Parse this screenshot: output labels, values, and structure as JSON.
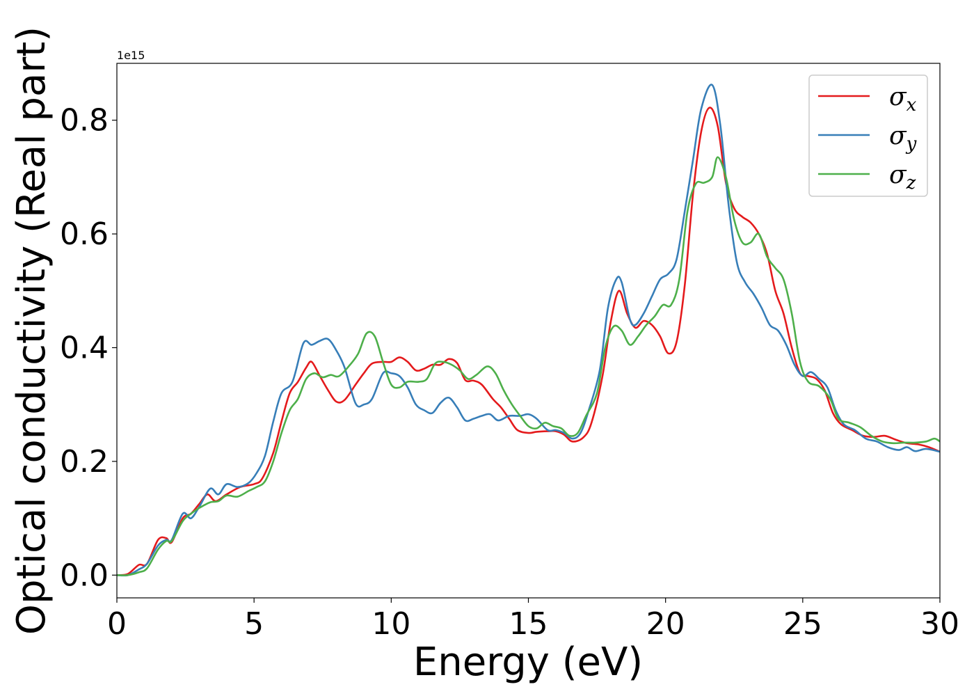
{
  "chart_data": {
    "type": "line",
    "title": "",
    "xlabel": "Energy (eV)",
    "ylabel": "Optical conductivity (Real part)",
    "y_offset_label": "1e15",
    "xlim": [
      0,
      30
    ],
    "ylim": [
      -0.04,
      0.9
    ],
    "xticks": [
      0,
      5,
      10,
      15,
      20,
      25,
      30
    ],
    "xtick_labels": [
      "0",
      "5",
      "10",
      "15",
      "20",
      "25",
      "30"
    ],
    "yticks": [
      0.0,
      0.2,
      0.4,
      0.6,
      0.8
    ],
    "ytick_labels": [
      "0.0",
      "0.2",
      "0.4",
      "0.6",
      "0.8"
    ],
    "grid": false,
    "legend_position": "top-right",
    "series": [
      {
        "name": "σ",
        "subscript": "x",
        "color": "#e41a1c",
        "points": [
          [
            0,
            0
          ],
          [
            0.4,
            0.002
          ],
          [
            0.8,
            0.018
          ],
          [
            1.1,
            0.02
          ],
          [
            1.5,
            0.062
          ],
          [
            1.8,
            0.065
          ],
          [
            2.0,
            0.058
          ],
          [
            2.4,
            0.1
          ],
          [
            2.7,
            0.108
          ],
          [
            3.0,
            0.125
          ],
          [
            3.3,
            0.142
          ],
          [
            3.6,
            0.13
          ],
          [
            4.0,
            0.142
          ],
          [
            4.5,
            0.155
          ],
          [
            5.0,
            0.16
          ],
          [
            5.3,
            0.17
          ],
          [
            5.7,
            0.215
          ],
          [
            6.0,
            0.27
          ],
          [
            6.3,
            0.32
          ],
          [
            6.6,
            0.34
          ],
          [
            6.9,
            0.365
          ],
          [
            7.1,
            0.375
          ],
          [
            7.4,
            0.35
          ],
          [
            7.7,
            0.325
          ],
          [
            8.0,
            0.305
          ],
          [
            8.3,
            0.308
          ],
          [
            8.7,
            0.335
          ],
          [
            9.0,
            0.355
          ],
          [
            9.3,
            0.372
          ],
          [
            9.7,
            0.375
          ],
          [
            10.0,
            0.375
          ],
          [
            10.3,
            0.383
          ],
          [
            10.6,
            0.375
          ],
          [
            10.9,
            0.36
          ],
          [
            11.2,
            0.363
          ],
          [
            11.5,
            0.37
          ],
          [
            11.8,
            0.37
          ],
          [
            12.1,
            0.38
          ],
          [
            12.4,
            0.373
          ],
          [
            12.7,
            0.343
          ],
          [
            13.0,
            0.342
          ],
          [
            13.3,
            0.335
          ],
          [
            13.7,
            0.31
          ],
          [
            14.0,
            0.295
          ],
          [
            14.3,
            0.275
          ],
          [
            14.6,
            0.255
          ],
          [
            15.0,
            0.25
          ],
          [
            15.3,
            0.252
          ],
          [
            15.7,
            0.253
          ],
          [
            16.0,
            0.253
          ],
          [
            16.3,
            0.247
          ],
          [
            16.6,
            0.235
          ],
          [
            17.0,
            0.242
          ],
          [
            17.3,
            0.268
          ],
          [
            17.7,
            0.35
          ],
          [
            18.0,
            0.445
          ],
          [
            18.3,
            0.5
          ],
          [
            18.6,
            0.46
          ],
          [
            18.9,
            0.435
          ],
          [
            19.2,
            0.447
          ],
          [
            19.5,
            0.44
          ],
          [
            19.8,
            0.42
          ],
          [
            20.1,
            0.39
          ],
          [
            20.4,
            0.41
          ],
          [
            20.7,
            0.51
          ],
          [
            21.0,
            0.67
          ],
          [
            21.3,
            0.78
          ],
          [
            21.6,
            0.822
          ],
          [
            21.9,
            0.79
          ],
          [
            22.2,
            0.69
          ],
          [
            22.5,
            0.645
          ],
          [
            22.8,
            0.63
          ],
          [
            23.1,
            0.62
          ],
          [
            23.4,
            0.6
          ],
          [
            23.7,
            0.565
          ],
          [
            24.0,
            0.5
          ],
          [
            24.3,
            0.46
          ],
          [
            24.6,
            0.4
          ],
          [
            24.9,
            0.355
          ],
          [
            25.2,
            0.35
          ],
          [
            25.5,
            0.345
          ],
          [
            25.8,
            0.325
          ],
          [
            26.1,
            0.285
          ],
          [
            26.4,
            0.265
          ],
          [
            26.8,
            0.255
          ],
          [
            27.2,
            0.245
          ],
          [
            27.6,
            0.243
          ],
          [
            28.0,
            0.245
          ],
          [
            28.4,
            0.238
          ],
          [
            28.8,
            0.232
          ],
          [
            29.2,
            0.23
          ],
          [
            29.6,
            0.225
          ],
          [
            30.0,
            0.217
          ]
        ]
      },
      {
        "name": "σ",
        "subscript": "y",
        "color": "#377eb8",
        "points": [
          [
            0,
            0
          ],
          [
            0.4,
            0
          ],
          [
            0.8,
            0.01
          ],
          [
            1.1,
            0.02
          ],
          [
            1.5,
            0.052
          ],
          [
            1.8,
            0.062
          ],
          [
            2.0,
            0.062
          ],
          [
            2.4,
            0.108
          ],
          [
            2.7,
            0.1
          ],
          [
            3.0,
            0.12
          ],
          [
            3.4,
            0.152
          ],
          [
            3.7,
            0.142
          ],
          [
            4.0,
            0.16
          ],
          [
            4.4,
            0.155
          ],
          [
            4.8,
            0.162
          ],
          [
            5.1,
            0.18
          ],
          [
            5.4,
            0.21
          ],
          [
            5.7,
            0.27
          ],
          [
            6.0,
            0.32
          ],
          [
            6.4,
            0.34
          ],
          [
            6.8,
            0.408
          ],
          [
            7.1,
            0.405
          ],
          [
            7.4,
            0.412
          ],
          [
            7.7,
            0.415
          ],
          [
            8.0,
            0.395
          ],
          [
            8.3,
            0.365
          ],
          [
            8.7,
            0.302
          ],
          [
            9.0,
            0.3
          ],
          [
            9.3,
            0.31
          ],
          [
            9.7,
            0.355
          ],
          [
            10.0,
            0.355
          ],
          [
            10.3,
            0.35
          ],
          [
            10.6,
            0.33
          ],
          [
            10.9,
            0.3
          ],
          [
            11.2,
            0.29
          ],
          [
            11.5,
            0.285
          ],
          [
            11.8,
            0.303
          ],
          [
            12.1,
            0.312
          ],
          [
            12.4,
            0.295
          ],
          [
            12.7,
            0.272
          ],
          [
            13.0,
            0.275
          ],
          [
            13.3,
            0.28
          ],
          [
            13.6,
            0.283
          ],
          [
            13.9,
            0.272
          ],
          [
            14.3,
            0.28
          ],
          [
            14.7,
            0.28
          ],
          [
            15.0,
            0.283
          ],
          [
            15.3,
            0.275
          ],
          [
            15.7,
            0.255
          ],
          [
            16.0,
            0.255
          ],
          [
            16.3,
            0.25
          ],
          [
            16.6,
            0.24
          ],
          [
            16.9,
            0.25
          ],
          [
            17.2,
            0.29
          ],
          [
            17.6,
            0.36
          ],
          [
            17.9,
            0.47
          ],
          [
            18.2,
            0.52
          ],
          [
            18.4,
            0.515
          ],
          [
            18.7,
            0.45
          ],
          [
            18.9,
            0.44
          ],
          [
            19.2,
            0.46
          ],
          [
            19.5,
            0.49
          ],
          [
            19.8,
            0.52
          ],
          [
            20.1,
            0.53
          ],
          [
            20.4,
            0.555
          ],
          [
            20.7,
            0.64
          ],
          [
            21.0,
            0.73
          ],
          [
            21.3,
            0.82
          ],
          [
            21.7,
            0.862
          ],
          [
            22.0,
            0.79
          ],
          [
            22.3,
            0.65
          ],
          [
            22.6,
            0.55
          ],
          [
            22.9,
            0.515
          ],
          [
            23.2,
            0.495
          ],
          [
            23.5,
            0.47
          ],
          [
            23.8,
            0.44
          ],
          [
            24.1,
            0.43
          ],
          [
            24.4,
            0.405
          ],
          [
            24.7,
            0.37
          ],
          [
            25.0,
            0.35
          ],
          [
            25.3,
            0.357
          ],
          [
            25.6,
            0.345
          ],
          [
            25.9,
            0.33
          ],
          [
            26.2,
            0.29
          ],
          [
            26.5,
            0.265
          ],
          [
            26.9,
            0.255
          ],
          [
            27.3,
            0.24
          ],
          [
            27.7,
            0.235
          ],
          [
            28.1,
            0.225
          ],
          [
            28.5,
            0.22
          ],
          [
            28.8,
            0.225
          ],
          [
            29.1,
            0.218
          ],
          [
            29.5,
            0.222
          ],
          [
            30.0,
            0.217
          ]
        ]
      },
      {
        "name": "σ",
        "subscript": "z",
        "color": "#4daf4a",
        "points": [
          [
            0,
            0
          ],
          [
            0.4,
            0
          ],
          [
            0.8,
            0.005
          ],
          [
            1.1,
            0.012
          ],
          [
            1.5,
            0.045
          ],
          [
            1.8,
            0.06
          ],
          [
            2.0,
            0.06
          ],
          [
            2.4,
            0.095
          ],
          [
            2.7,
            0.108
          ],
          [
            3.0,
            0.118
          ],
          [
            3.4,
            0.128
          ],
          [
            3.7,
            0.13
          ],
          [
            4.0,
            0.14
          ],
          [
            4.4,
            0.138
          ],
          [
            4.8,
            0.148
          ],
          [
            5.1,
            0.155
          ],
          [
            5.4,
            0.165
          ],
          [
            5.7,
            0.2
          ],
          [
            6.0,
            0.25
          ],
          [
            6.3,
            0.29
          ],
          [
            6.6,
            0.31
          ],
          [
            6.9,
            0.345
          ],
          [
            7.2,
            0.355
          ],
          [
            7.5,
            0.348
          ],
          [
            7.8,
            0.352
          ],
          [
            8.1,
            0.35
          ],
          [
            8.5,
            0.37
          ],
          [
            8.8,
            0.39
          ],
          [
            9.1,
            0.425
          ],
          [
            9.4,
            0.42
          ],
          [
            9.7,
            0.375
          ],
          [
            10.0,
            0.335
          ],
          [
            10.3,
            0.33
          ],
          [
            10.6,
            0.34
          ],
          [
            11.0,
            0.34
          ],
          [
            11.3,
            0.345
          ],
          [
            11.6,
            0.372
          ],
          [
            11.9,
            0.375
          ],
          [
            12.2,
            0.37
          ],
          [
            12.5,
            0.36
          ],
          [
            12.8,
            0.345
          ],
          [
            13.1,
            0.352
          ],
          [
            13.5,
            0.367
          ],
          [
            13.8,
            0.355
          ],
          [
            14.1,
            0.325
          ],
          [
            14.4,
            0.3
          ],
          [
            14.7,
            0.28
          ],
          [
            15.0,
            0.262
          ],
          [
            15.3,
            0.258
          ],
          [
            15.6,
            0.268
          ],
          [
            15.9,
            0.262
          ],
          [
            16.2,
            0.258
          ],
          [
            16.5,
            0.245
          ],
          [
            16.8,
            0.25
          ],
          [
            17.1,
            0.28
          ],
          [
            17.5,
            0.32
          ],
          [
            17.8,
            0.4
          ],
          [
            18.1,
            0.437
          ],
          [
            18.4,
            0.43
          ],
          [
            18.7,
            0.405
          ],
          [
            19.0,
            0.42
          ],
          [
            19.3,
            0.44
          ],
          [
            19.6,
            0.455
          ],
          [
            19.9,
            0.475
          ],
          [
            20.2,
            0.475
          ],
          [
            20.5,
            0.52
          ],
          [
            20.8,
            0.64
          ],
          [
            21.1,
            0.688
          ],
          [
            21.4,
            0.69
          ],
          [
            21.7,
            0.7
          ],
          [
            21.9,
            0.735
          ],
          [
            22.2,
            0.7
          ],
          [
            22.5,
            0.625
          ],
          [
            22.8,
            0.585
          ],
          [
            23.1,
            0.585
          ],
          [
            23.4,
            0.6
          ],
          [
            23.7,
            0.56
          ],
          [
            24.0,
            0.54
          ],
          [
            24.3,
            0.52
          ],
          [
            24.6,
            0.46
          ],
          [
            24.9,
            0.375
          ],
          [
            25.2,
            0.34
          ],
          [
            25.6,
            0.332
          ],
          [
            26.0,
            0.31
          ],
          [
            26.3,
            0.275
          ],
          [
            26.7,
            0.268
          ],
          [
            27.1,
            0.26
          ],
          [
            27.5,
            0.245
          ],
          [
            27.9,
            0.235
          ],
          [
            28.3,
            0.232
          ],
          [
            28.7,
            0.233
          ],
          [
            29.1,
            0.233
          ],
          [
            29.5,
            0.235
          ],
          [
            29.8,
            0.24
          ],
          [
            30.0,
            0.235
          ]
        ]
      }
    ]
  }
}
